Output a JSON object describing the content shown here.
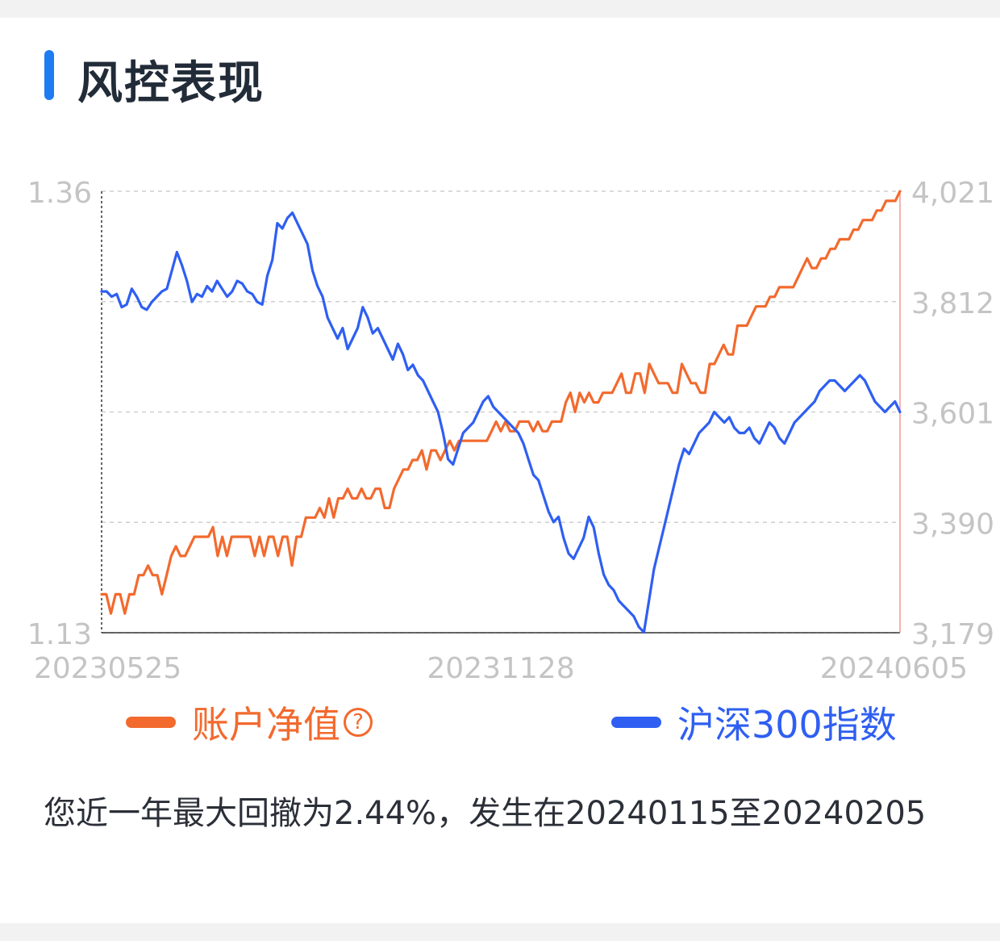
{
  "header": {
    "title": "风控表现"
  },
  "chart_data": {
    "type": "line",
    "x_tick_labels": [
      "20230525",
      "20231128",
      "20240605"
    ],
    "y_left": {
      "ticks": [
        "1.36",
        "1.13"
      ],
      "range": [
        1.13,
        1.36
      ]
    },
    "y_right": {
      "ticks": [
        "4,021",
        "3,812",
        "3,601",
        "3,390",
        "3,179"
      ],
      "range": [
        3179,
        4021
      ]
    },
    "grid": true,
    "legend_position": "bottom",
    "colors": {
      "nav": "#f26a2e",
      "index": "#2f5ff2"
    },
    "series": [
      {
        "name": "账户净值",
        "axis": "left",
        "values": [
          1.15,
          1.15,
          1.14,
          1.15,
          1.15,
          1.14,
          1.15,
          1.15,
          1.16,
          1.16,
          1.165,
          1.16,
          1.16,
          1.15,
          1.16,
          1.17,
          1.175,
          1.17,
          1.17,
          1.175,
          1.18,
          1.18,
          1.18,
          1.18,
          1.185,
          1.17,
          1.18,
          1.17,
          1.18,
          1.18,
          1.18,
          1.18,
          1.18,
          1.17,
          1.18,
          1.17,
          1.18,
          1.18,
          1.17,
          1.18,
          1.18,
          1.165,
          1.18,
          1.18,
          1.19,
          1.19,
          1.19,
          1.195,
          1.19,
          1.2,
          1.19,
          1.2,
          1.2,
          1.205,
          1.2,
          1.2,
          1.205,
          1.2,
          1.2,
          1.205,
          1.205,
          1.195,
          1.195,
          1.205,
          1.21,
          1.215,
          1.215,
          1.22,
          1.22,
          1.225,
          1.215,
          1.225,
          1.225,
          1.22,
          1.225,
          1.23,
          1.225,
          1.23,
          1.23,
          1.23,
          1.23,
          1.23,
          1.23,
          1.23,
          1.235,
          1.24,
          1.235,
          1.24,
          1.235,
          1.235,
          1.24,
          1.24,
          1.24,
          1.235,
          1.24,
          1.235,
          1.235,
          1.24,
          1.24,
          1.24,
          1.25,
          1.255,
          1.245,
          1.255,
          1.25,
          1.255,
          1.25,
          1.25,
          1.255,
          1.255,
          1.255,
          1.26,
          1.265,
          1.255,
          1.255,
          1.265,
          1.265,
          1.255,
          1.27,
          1.265,
          1.26,
          1.26,
          1.26,
          1.255,
          1.255,
          1.27,
          1.265,
          1.26,
          1.26,
          1.255,
          1.255,
          1.27,
          1.27,
          1.275,
          1.28,
          1.275,
          1.275,
          1.29,
          1.29,
          1.29,
          1.295,
          1.3,
          1.3,
          1.3,
          1.305,
          1.305,
          1.31,
          1.31,
          1.31,
          1.31,
          1.315,
          1.32,
          1.325,
          1.32,
          1.32,
          1.325,
          1.325,
          1.33,
          1.33,
          1.335,
          1.335,
          1.335,
          1.34,
          1.34,
          1.345,
          1.345,
          1.345,
          1.35,
          1.35,
          1.355,
          1.355,
          1.355,
          1.36
        ]
      },
      {
        "name": "沪深300指数",
        "axis": "right",
        "values": [
          3830,
          3830,
          3820,
          3825,
          3800,
          3805,
          3835,
          3820,
          3800,
          3795,
          3810,
          3820,
          3830,
          3835,
          3870,
          3905,
          3880,
          3850,
          3810,
          3825,
          3820,
          3840,
          3830,
          3850,
          3835,
          3820,
          3830,
          3850,
          3845,
          3830,
          3825,
          3810,
          3805,
          3860,
          3890,
          3960,
          3950,
          3970,
          3980,
          3960,
          3940,
          3920,
          3870,
          3840,
          3820,
          3780,
          3760,
          3740,
          3760,
          3720,
          3740,
          3760,
          3800,
          3780,
          3750,
          3760,
          3740,
          3720,
          3700,
          3730,
          3710,
          3680,
          3690,
          3670,
          3660,
          3640,
          3620,
          3600,
          3560,
          3510,
          3500,
          3530,
          3560,
          3570,
          3580,
          3600,
          3620,
          3630,
          3610,
          3600,
          3590,
          3580,
          3570,
          3560,
          3540,
          3510,
          3480,
          3470,
          3440,
          3410,
          3390,
          3400,
          3360,
          3330,
          3320,
          3340,
          3360,
          3400,
          3380,
          3330,
          3290,
          3270,
          3260,
          3240,
          3230,
          3220,
          3210,
          3190,
          3180,
          3240,
          3300,
          3340,
          3380,
          3420,
          3460,
          3500,
          3530,
          3520,
          3540,
          3560,
          3570,
          3580,
          3600,
          3590,
          3580,
          3590,
          3570,
          3560,
          3560,
          3570,
          3550,
          3540,
          3560,
          3580,
          3570,
          3550,
          3540,
          3560,
          3580,
          3590,
          3600,
          3610,
          3620,
          3640,
          3650,
          3660,
          3660,
          3650,
          3640,
          3650,
          3660,
          3670,
          3660,
          3640,
          3620,
          3610,
          3600,
          3610,
          3620,
          3600
        ]
      }
    ]
  },
  "summary": {
    "text": "您近一年最大回撤为2.44%，发生在20240115至20240205"
  }
}
